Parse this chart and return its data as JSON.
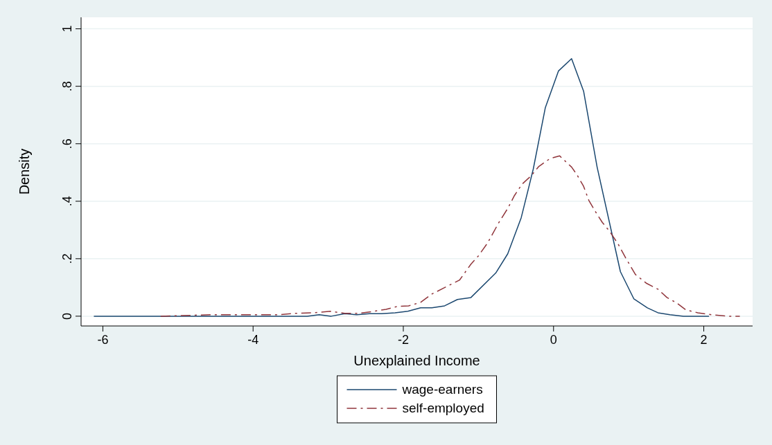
{
  "chart_data": {
    "type": "line",
    "xlabel": "Unexplained Income",
    "ylabel": "Density",
    "xlim": [
      -6.29,
      2.65
    ],
    "ylim": [
      -0.034,
      1.04
    ],
    "xticks": [
      -6,
      -4,
      -2,
      0,
      2
    ],
    "yticks": [
      0,
      {
        "value": 0.2,
        "label": ".2"
      },
      {
        "value": 0.4,
        "label": ".4"
      },
      {
        "value": 0.6,
        "label": ".6"
      },
      {
        "value": 0.8,
        "label": ".8"
      },
      1
    ],
    "grid": "y",
    "legend": "bottom",
    "series": [
      {
        "name": "wage-earners",
        "color": "#1a476f",
        "line_style": "solid",
        "x": [
          -6.12,
          -3.28,
          -3.12,
          -2.96,
          -2.78,
          -2.62,
          -2.45,
          -2.29,
          -2.11,
          -1.94,
          -1.77,
          -1.62,
          -1.45,
          -1.28,
          -1.1,
          -0.77,
          -0.61,
          -0.43,
          -0.27,
          -0.11,
          0.065,
          0.24,
          0.4,
          0.58,
          0.89,
          1.07,
          1.25,
          1.39,
          1.55,
          1.73,
          2.07
        ],
        "values": [
          0,
          0,
          0.005,
          0,
          0.009,
          0.005,
          0.009,
          0.009,
          0.012,
          0.017,
          0.029,
          0.029,
          0.036,
          0.058,
          0.065,
          0.15,
          0.217,
          0.343,
          0.512,
          0.725,
          0.853,
          0.896,
          0.783,
          0.519,
          0.155,
          0.06,
          0.029,
          0.012,
          0.005,
          0,
          0
        ]
      },
      {
        "name": "self-employed",
        "color": "#90353b",
        "line_style": "dashed",
        "x": [
          -5.23,
          -4.57,
          -3.65,
          -3.43,
          -3.19,
          -2.97,
          -2.78,
          -2.6,
          -2.39,
          -2.23,
          -2.08,
          -1.93,
          -1.77,
          -1.62,
          -1.47,
          -1.25,
          -1.1,
          -1.0,
          -0.88,
          -0.73,
          -0.61,
          -0.52,
          -0.42,
          -0.3,
          -0.2,
          -0.05,
          0.08,
          0.24,
          0.31,
          0.4,
          0.47,
          0.56,
          0.65,
          0.75,
          0.86,
          0.96,
          1.09,
          1.24,
          1.39,
          1.51,
          1.64,
          1.76,
          1.92,
          2.1,
          2.31,
          2.48
        ],
        "values": [
          0,
          0.005,
          0.005,
          0.01,
          0.012,
          0.017,
          0.01,
          0.01,
          0.017,
          0.024,
          0.034,
          0.036,
          0.048,
          0.077,
          0.097,
          0.126,
          0.181,
          0.21,
          0.254,
          0.325,
          0.375,
          0.42,
          0.459,
          0.488,
          0.52,
          0.548,
          0.558,
          0.519,
          0.493,
          0.452,
          0.403,
          0.363,
          0.326,
          0.294,
          0.251,
          0.203,
          0.145,
          0.114,
          0.094,
          0.065,
          0.046,
          0.022,
          0.012,
          0.005,
          0,
          0
        ]
      }
    ]
  }
}
